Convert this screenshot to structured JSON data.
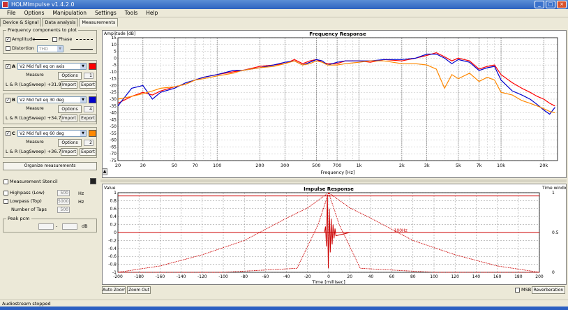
{
  "window": {
    "title": "HOLMImpulse v1.4.2.0"
  },
  "menu": [
    "File",
    "Options",
    "Manipulation",
    "Settings",
    "Tools",
    "Help"
  ],
  "tabs": [
    "Device & Signal",
    "Data analysis",
    "Measurements"
  ],
  "left": {
    "freq_group_title": "Frequency components to plot",
    "amplitude_label": "Amplitude",
    "phase_label": "Phase",
    "distortion_label": "Distortion",
    "distortion_value": "THD",
    "measurements": [
      {
        "letter": "A",
        "name": "V2 Mid full eq on axis",
        "measure": "Measure",
        "options": "Options",
        "num": "1",
        "info": "L & R (LogSweep) +31.9dB",
        "import": "Import",
        "export": "Export",
        "color": "#ff0000"
      },
      {
        "letter": "B",
        "name": "V2 Mid full eq 30 deg",
        "measure": "Measure",
        "options": "Options",
        "num": "4",
        "info": "L & R (LogSweep) +34.7dB",
        "import": "Import",
        "export": "Export",
        "color": "#0000cc"
      },
      {
        "letter": "C",
        "name": "V2 Mid full eq 60 deg",
        "measure": "Measure",
        "options": "Options",
        "num": "2",
        "info": "L & R (LogSweep) +36.7dB",
        "import": "Import",
        "export": "Export",
        "color": "#ff8800"
      }
    ],
    "organize_button": "Organize measurements",
    "stencil_label": "Measurement Stencil",
    "highpass_label": "Highpass (Low)",
    "highpass_value": "500",
    "lowpass_label": "Lowpass (Top)",
    "lowpass_value": "5000",
    "taps_label": "Number of Taps",
    "taps_value": "500",
    "hz": "Hz",
    "peak_group": "Peak pcm",
    "peak_dash": "-",
    "peak_db": "dB"
  },
  "freq_chart": {
    "title": "Frequency Response",
    "ylabel": "Amplitude [dB]",
    "xlabel": "Frequency [Hz]",
    "y_ticks": [
      "15",
      "10",
      "5",
      "0",
      "-5",
      "-10",
      "-15",
      "-20",
      "-25",
      "-30",
      "-35",
      "-40",
      "-45",
      "-50",
      "-55",
      "-60",
      "-65",
      "-70",
      "-75"
    ],
    "x_ticks": [
      "20",
      "30",
      "50",
      "70",
      "100",
      "200",
      "300",
      "500",
      "700",
      "1k",
      "2k",
      "3k",
      "5k",
      "7k",
      "10k",
      "20k"
    ]
  },
  "impulse_chart": {
    "title": "Impulse Response",
    "ylabel": "Value",
    "right_label": "Time window",
    "xlabel": "Time [millisec]",
    "y_ticks": [
      "1",
      "0.8",
      "0.6",
      "0.4",
      "0.2",
      "0",
      "-0.2",
      "-0.4",
      "-0.6",
      "-0.8",
      "-1"
    ],
    "x_ticks": [
      "-200",
      "-180",
      "-160",
      "-140",
      "-120",
      "-100",
      "-80",
      "-60",
      "-40",
      "-20",
      "0",
      "20",
      "40",
      "60",
      "80",
      "100",
      "120",
      "140",
      "160",
      "180",
      "200"
    ],
    "right_ticks": [
      "1",
      "0.5",
      "0"
    ],
    "annotation": "100Hz",
    "auto_zoom": "Auto Zoom",
    "zoom_out": "Zoom Out",
    "msb_label": "MSB",
    "reverberation_label": "Reverberation"
  },
  "chart_data": [
    {
      "type": "line",
      "title": "Frequency Response",
      "xlabel": "Frequency [Hz]",
      "ylabel": "Amplitude [dB]",
      "x_scale": "log",
      "xlim": [
        20,
        25000
      ],
      "ylim": [
        -75,
        15
      ],
      "grid": true,
      "series": [
        {
          "color": "#ff0000",
          "x": [
            20,
            25,
            30,
            35,
            40,
            50,
            60,
            70,
            80,
            100,
            130,
            150,
            200,
            250,
            300,
            350,
            400,
            450,
            500,
            550,
            600,
            700,
            800,
            1000,
            1200,
            1500,
            2000,
            2500,
            3000,
            3500,
            4000,
            4500,
            5000,
            6000,
            7000,
            8000,
            9000,
            10000,
            12000,
            14000,
            16000,
            18000,
            20000,
            22000,
            24000
          ],
          "y": [
            -33,
            -28,
            -25,
            -27,
            -24,
            -21,
            -19,
            -16,
            -14,
            -12,
            -10,
            -9,
            -6,
            -5,
            -4,
            -1,
            -4,
            -2,
            -1,
            -3,
            -4,
            -4,
            -2,
            -2,
            -3,
            -1,
            -2,
            0,
            2,
            4,
            1,
            -2,
            0,
            -2,
            -8,
            -6,
            -5,
            -12,
            -18,
            -22,
            -25,
            -28,
            -30,
            -33,
            -35
          ]
        },
        {
          "color": "#0000cc",
          "x": [
            20,
            25,
            30,
            35,
            40,
            50,
            60,
            70,
            80,
            100,
            130,
            150,
            200,
            250,
            300,
            350,
            400,
            450,
            500,
            550,
            600,
            700,
            800,
            1000,
            1200,
            1500,
            2000,
            2500,
            3000,
            3500,
            4000,
            4500,
            5000,
            6000,
            7000,
            8000,
            9000,
            10000,
            12000,
            14000,
            16000,
            18000,
            20000,
            22000,
            24000
          ],
          "y": [
            -35,
            -22,
            -20,
            -30,
            -25,
            -22,
            -18,
            -16,
            -14,
            -12,
            -9,
            -9,
            -7,
            -5,
            -3,
            -2,
            -5,
            -3,
            -1,
            -2,
            -5,
            -3,
            -2,
            -2,
            -2,
            -1,
            -1,
            0,
            3,
            3,
            0,
            -4,
            -1,
            -3,
            -9,
            -7,
            -6,
            -16,
            -24,
            -27,
            -30,
            -34,
            -38,
            -41,
            -36
          ]
        },
        {
          "color": "#ff8800",
          "x": [
            20,
            25,
            30,
            35,
            40,
            50,
            60,
            70,
            80,
            100,
            130,
            150,
            200,
            250,
            300,
            350,
            400,
            450,
            500,
            550,
            600,
            700,
            800,
            1000,
            1200,
            1500,
            2000,
            2500,
            3000,
            3500,
            4000,
            4500,
            5000,
            6000,
            7000,
            8000,
            9000,
            10000,
            12000,
            14000,
            16000,
            18000,
            20000,
            22000,
            24000
          ],
          "y": [
            -30,
            -28,
            -26,
            -24,
            -22,
            -21,
            -19,
            -16,
            -15,
            -13,
            -11,
            -9,
            -7,
            -6,
            -4,
            -2,
            -5,
            -4,
            -2,
            -3,
            -5,
            -5,
            -4,
            -3,
            -2,
            -2,
            -4,
            -4,
            -5,
            -8,
            -22,
            -12,
            -15,
            -11,
            -17,
            -14,
            -16,
            -25,
            -27,
            -31,
            -33,
            -35,
            -37,
            -39,
            -40
          ]
        }
      ]
    },
    {
      "type": "line",
      "title": "Impulse Response",
      "xlabel": "Time [millisec]",
      "ylabel": "Value",
      "xlim": [
        -200,
        200
      ],
      "ylim": [
        -1,
        1
      ],
      "grid": true,
      "series": [
        {
          "color": "#cc0000",
          "x": [
            -200,
            -160,
            -120,
            -80,
            -40,
            -20,
            0,
            20,
            40,
            80,
            120,
            160,
            200
          ],
          "y": [
            -1,
            -0.84,
            -0.56,
            -0.2,
            0.36,
            0.62,
            1,
            0.62,
            0.36,
            -0.2,
            -0.56,
            -0.84,
            -1
          ]
        },
        {
          "color": "#cc0000",
          "x": [
            -200,
            -100,
            -30,
            -10,
            0,
            10,
            30,
            100,
            200
          ],
          "y": [
            -1,
            -1,
            -0.9,
            0.2,
            1,
            0.2,
            -0.9,
            -1,
            -1
          ]
        },
        {
          "color": "#cc0000",
          "x": [
            -200,
            200
          ],
          "y": [
            0.92,
            0.92
          ]
        },
        {
          "color": "#cc0000",
          "x": [
            -200,
            200
          ],
          "y": [
            0.0,
            0.0
          ]
        }
      ]
    }
  ],
  "status": {
    "text": "Audiostream stopped"
  }
}
